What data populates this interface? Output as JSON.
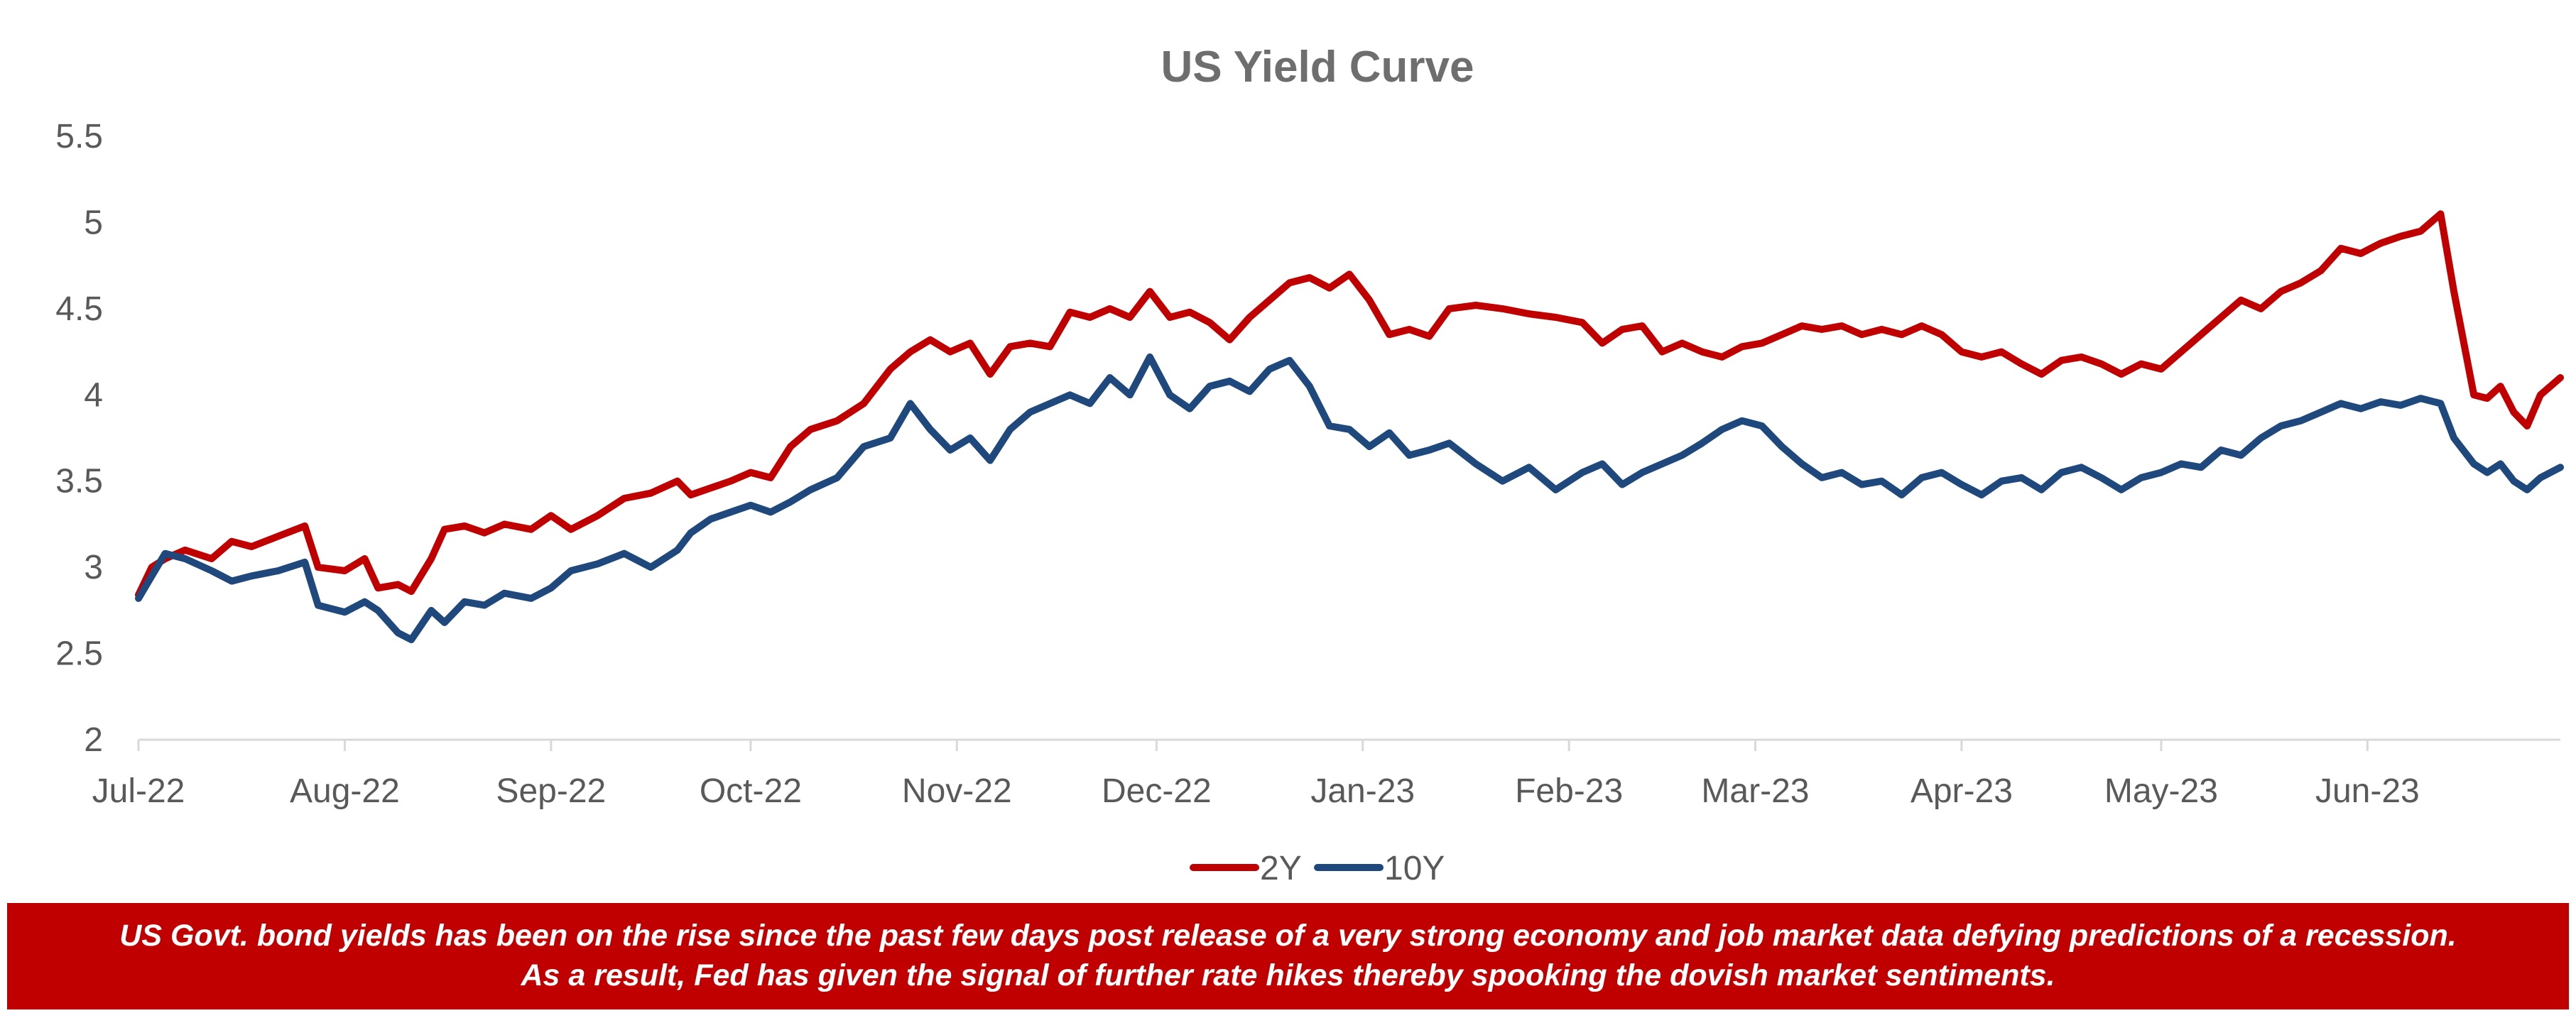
{
  "chart_data": {
    "type": "line",
    "title": "US Yield Curve",
    "xlabel": "",
    "ylabel": "",
    "ylim": [
      2,
      5.5
    ],
    "yticks": [
      "2",
      "2.5",
      "3",
      "3.5",
      "4",
      "4.5",
      "5",
      "5.5"
    ],
    "xtick_labels": [
      "Jul-22",
      "Aug-22",
      "Sep-22",
      "Oct-22",
      "Nov-22",
      "Dec-22",
      "Jan-23",
      "Feb-23",
      "Mar-23",
      "Apr-23",
      "May-23",
      "Jun-23"
    ],
    "xlim": [
      "2022-07-01",
      "2023-06-30"
    ],
    "grid": false,
    "legend": "bottom",
    "series": [
      {
        "name": "2Y",
        "color": "#c00000",
        "points": [
          [
            "2022-07-01",
            2.84
          ],
          [
            "2022-07-03",
            3.0
          ],
          [
            "2022-07-05",
            3.05
          ],
          [
            "2022-07-08",
            3.1
          ],
          [
            "2022-07-12",
            3.05
          ],
          [
            "2022-07-15",
            3.15
          ],
          [
            "2022-07-18",
            3.12
          ],
          [
            "2022-07-22",
            3.18
          ],
          [
            "2022-07-26",
            3.24
          ],
          [
            "2022-07-28",
            3.0
          ],
          [
            "2022-08-01",
            2.98
          ],
          [
            "2022-08-04",
            3.05
          ],
          [
            "2022-08-06",
            2.88
          ],
          [
            "2022-08-09",
            2.9
          ],
          [
            "2022-08-11",
            2.86
          ],
          [
            "2022-08-14",
            3.05
          ],
          [
            "2022-08-16",
            3.22
          ],
          [
            "2022-08-19",
            3.24
          ],
          [
            "2022-08-22",
            3.2
          ],
          [
            "2022-08-25",
            3.25
          ],
          [
            "2022-08-29",
            3.22
          ],
          [
            "2022-09-01",
            3.3
          ],
          [
            "2022-09-04",
            3.22
          ],
          [
            "2022-09-08",
            3.3
          ],
          [
            "2022-09-12",
            3.4
          ],
          [
            "2022-09-16",
            3.43
          ],
          [
            "2022-09-20",
            3.5
          ],
          [
            "2022-09-22",
            3.42
          ],
          [
            "2022-09-25",
            3.46
          ],
          [
            "2022-09-28",
            3.5
          ],
          [
            "2022-10-01",
            3.55
          ],
          [
            "2022-10-04",
            3.52
          ],
          [
            "2022-10-07",
            3.7
          ],
          [
            "2022-10-10",
            3.8
          ],
          [
            "2022-10-14",
            3.85
          ],
          [
            "2022-10-18",
            3.95
          ],
          [
            "2022-10-22",
            4.15
          ],
          [
            "2022-10-25",
            4.25
          ],
          [
            "2022-10-28",
            4.32
          ],
          [
            "2022-10-31",
            4.25
          ],
          [
            "2022-11-03",
            4.3
          ],
          [
            "2022-11-06",
            4.12
          ],
          [
            "2022-11-09",
            4.28
          ],
          [
            "2022-11-12",
            4.3
          ],
          [
            "2022-11-15",
            4.28
          ],
          [
            "2022-11-18",
            4.48
          ],
          [
            "2022-11-21",
            4.45
          ],
          [
            "2022-11-24",
            4.5
          ],
          [
            "2022-11-27",
            4.45
          ],
          [
            "2022-11-30",
            4.6
          ],
          [
            "2022-12-03",
            4.45
          ],
          [
            "2022-12-06",
            4.48
          ],
          [
            "2022-12-09",
            4.42
          ],
          [
            "2022-12-12",
            4.32
          ],
          [
            "2022-12-15",
            4.45
          ],
          [
            "2022-12-18",
            4.55
          ],
          [
            "2022-12-21",
            4.65
          ],
          [
            "2022-12-24",
            4.68
          ],
          [
            "2022-12-27",
            4.62
          ],
          [
            "2022-12-30",
            4.7
          ],
          [
            "2023-01-02",
            4.55
          ],
          [
            "2023-01-05",
            4.35
          ],
          [
            "2023-01-08",
            4.38
          ],
          [
            "2023-01-11",
            4.34
          ],
          [
            "2023-01-14",
            4.5
          ],
          [
            "2023-01-18",
            4.52
          ],
          [
            "2023-01-22",
            4.5
          ],
          [
            "2023-01-26",
            4.47
          ],
          [
            "2023-01-30",
            4.45
          ],
          [
            "2023-02-03",
            4.42
          ],
          [
            "2023-02-06",
            4.3
          ],
          [
            "2023-02-09",
            4.38
          ],
          [
            "2023-02-12",
            4.4
          ],
          [
            "2023-02-15",
            4.25
          ],
          [
            "2023-02-18",
            4.3
          ],
          [
            "2023-02-21",
            4.25
          ],
          [
            "2023-02-24",
            4.22
          ],
          [
            "2023-02-27",
            4.28
          ],
          [
            "2023-03-02",
            4.3
          ],
          [
            "2023-03-05",
            4.35
          ],
          [
            "2023-03-08",
            4.4
          ],
          [
            "2023-03-11",
            4.38
          ],
          [
            "2023-03-14",
            4.4
          ],
          [
            "2023-03-17",
            4.35
          ],
          [
            "2023-03-20",
            4.38
          ],
          [
            "2023-03-23",
            4.35
          ],
          [
            "2023-03-26",
            4.4
          ],
          [
            "2023-03-29",
            4.35
          ],
          [
            "2023-04-01",
            4.25
          ],
          [
            "2023-04-04",
            4.22
          ],
          [
            "2023-04-07",
            4.25
          ],
          [
            "2023-04-10",
            4.18
          ],
          [
            "2023-04-13",
            4.12
          ],
          [
            "2023-04-16",
            4.2
          ],
          [
            "2023-04-19",
            4.22
          ],
          [
            "2023-04-22",
            4.18
          ],
          [
            "2023-04-25",
            4.12
          ],
          [
            "2023-04-28",
            4.18
          ],
          [
            "2023-05-01",
            4.15
          ],
          [
            "2023-05-04",
            4.25
          ],
          [
            "2023-05-07",
            4.35
          ],
          [
            "2023-05-10",
            4.45
          ],
          [
            "2023-05-13",
            4.55
          ],
          [
            "2023-05-16",
            4.5
          ],
          [
            "2023-05-19",
            4.6
          ],
          [
            "2023-05-22",
            4.65
          ],
          [
            "2023-05-25",
            4.72
          ],
          [
            "2023-05-28",
            4.85
          ],
          [
            "2023-05-31",
            4.82
          ],
          [
            "2023-06-03",
            4.88
          ],
          [
            "2023-06-06",
            4.92
          ],
          [
            "2023-06-09",
            4.95
          ],
          [
            "2023-06-12",
            5.05
          ],
          [
            "2023-06-14",
            4.6
          ],
          [
            "2023-06-17",
            4.0
          ],
          [
            "2023-06-19",
            3.98
          ],
          [
            "2023-06-21",
            4.05
          ],
          [
            "2023-06-23",
            3.9
          ],
          [
            "2023-06-25",
            3.82
          ],
          [
            "2023-06-27",
            4.0
          ],
          [
            "2023-06-30",
            4.1
          ]
        ]
      },
      {
        "name": "10Y",
        "color": "#1f497d",
        "points": []
      }
    ]
  },
  "banner": {
    "line1": "US Govt. bond yields has been on the rise since the past few days post release of a very strong economy and job market data defying predictions of a recession.",
    "line2": "As a result, Fed has given the signal of further rate hikes thereby spooking the dovish market sentiments."
  }
}
